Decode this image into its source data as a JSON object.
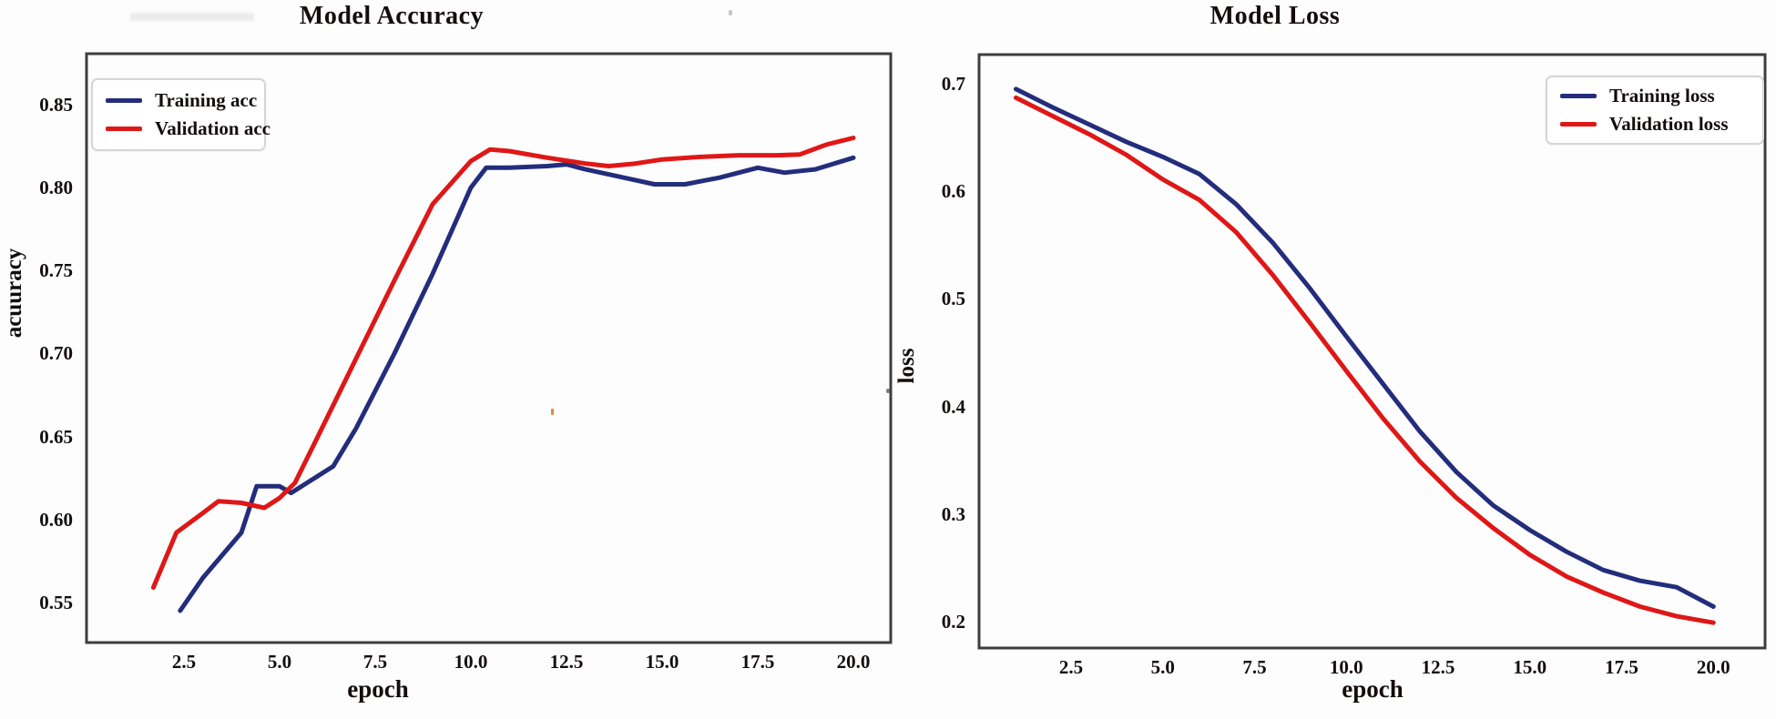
{
  "figure": {
    "background": "#fdfdfd"
  },
  "colors": {
    "training_line": "#232d7c",
    "validation_line": "#df1717",
    "spine": "#3d3d3d",
    "text": "#140d0d"
  },
  "charts": [
    {
      "id": "accuracy",
      "title": "Model Accuracy",
      "xlabel": "epoch",
      "ylabel": "acuuracy",
      "x_ticks": [
        "2.5",
        "5.0",
        "7.5",
        "10.0",
        "12.5",
        "15.0",
        "17.5",
        "20.0"
      ],
      "y_ticks": [
        "0.85",
        "0.80",
        "0.75",
        "0.70",
        "0.65",
        "0.60",
        "0.55"
      ],
      "legend_position": "top-left",
      "legend": [
        {
          "label": "Training acc",
          "color_key": "training_line"
        },
        {
          "label": "Validation acc",
          "color_key": "validation_line"
        }
      ]
    },
    {
      "id": "loss",
      "title": "Model Loss",
      "xlabel": "epoch",
      "ylabel": "loss",
      "x_ticks": [
        "2.5",
        "5.0",
        "7.5",
        "10.0",
        "12.5",
        "15.0",
        "17.5",
        "20.0"
      ],
      "y_ticks": [
        "0.7",
        "0.6",
        "0.5",
        "0.4",
        "0.3",
        "0.2"
      ],
      "legend_position": "top-right",
      "legend": [
        {
          "label": "Training loss",
          "color_key": "training_line"
        },
        {
          "label": "Validation loss",
          "color_key": "validation_line"
        }
      ]
    }
  ],
  "chart_data": [
    {
      "type": "line",
      "title": "Model Accuracy",
      "xlabel": "epoch",
      "ylabel": "acuuracy",
      "xlim": [
        0.3,
        21.0
      ],
      "ylim": [
        0.525,
        0.87
      ],
      "x_tick_values": [
        2.5,
        5.0,
        7.5,
        10.0,
        12.5,
        15.0,
        17.5,
        20.0
      ],
      "y_tick_values": [
        0.55,
        0.6,
        0.65,
        0.7,
        0.75,
        0.8,
        0.85
      ],
      "grid": false,
      "legend_position": "upper left",
      "series": [
        {
          "name": "Training acc",
          "color": "#232d7c",
          "points": [
            [
              2.4,
              0.545
            ],
            [
              3,
              0.565
            ],
            [
              4,
              0.592
            ],
            [
              4.4,
              0.62
            ],
            [
              5,
              0.62
            ],
            [
              5.3,
              0.616
            ],
            [
              6.4,
              0.632
            ],
            [
              7,
              0.655
            ],
            [
              8,
              0.7
            ],
            [
              9,
              0.748
            ],
            [
              10,
              0.8
            ],
            [
              10.4,
              0.812
            ],
            [
              11,
              0.812
            ],
            [
              12,
              0.813
            ],
            [
              12.5,
              0.814
            ],
            [
              13,
              0.811
            ],
            [
              14,
              0.806
            ],
            [
              14.8,
              0.802
            ],
            [
              15.6,
              0.802
            ],
            [
              16.5,
              0.806
            ],
            [
              17.5,
              0.812
            ],
            [
              18.2,
              0.809
            ],
            [
              19,
              0.811
            ],
            [
              20,
              0.818
            ]
          ]
        },
        {
          "name": "Validation acc",
          "color": "#df1717",
          "points": [
            [
              1.7,
              0.559
            ],
            [
              2.3,
              0.592
            ],
            [
              3,
              0.604
            ],
            [
              3.4,
              0.611
            ],
            [
              4,
              0.61
            ],
            [
              4.6,
              0.607
            ],
            [
              5,
              0.613
            ],
            [
              5.4,
              0.622
            ],
            [
              6,
              0.65
            ],
            [
              7,
              0.697
            ],
            [
              8,
              0.744
            ],
            [
              9,
              0.79
            ],
            [
              10,
              0.816
            ],
            [
              10.5,
              0.823
            ],
            [
              11,
              0.822
            ],
            [
              12,
              0.818
            ],
            [
              13,
              0.8145
            ],
            [
              13.6,
              0.813
            ],
            [
              14.3,
              0.8145
            ],
            [
              15,
              0.817
            ],
            [
              16,
              0.8185
            ],
            [
              17,
              0.8195
            ],
            [
              18,
              0.8195
            ],
            [
              18.6,
              0.82
            ],
            [
              19.3,
              0.826
            ],
            [
              20,
              0.83
            ]
          ]
        }
      ]
    },
    {
      "type": "line",
      "title": "Model Loss",
      "xlabel": "epoch",
      "ylabel": "loss",
      "xlim": [
        0.3,
        21.0
      ],
      "ylim": [
        0.175,
        0.725
      ],
      "x_tick_values": [
        2.5,
        5.0,
        7.5,
        10.0,
        12.5,
        15.0,
        17.5,
        20.0
      ],
      "y_tick_values": [
        0.2,
        0.3,
        0.4,
        0.5,
        0.6,
        0.7
      ],
      "grid": false,
      "legend_position": "upper right",
      "series": [
        {
          "name": "Training loss",
          "color": "#232d7c",
          "points": [
            [
              1,
              0.695
            ],
            [
              2,
              0.678
            ],
            [
              3,
              0.662
            ],
            [
              4,
              0.646
            ],
            [
              5,
              0.632
            ],
            [
              6,
              0.616
            ],
            [
              7,
              0.588
            ],
            [
              8,
              0.552
            ],
            [
              9,
              0.51
            ],
            [
              10,
              0.465
            ],
            [
              11,
              0.421
            ],
            [
              12,
              0.377
            ],
            [
              13,
              0.339
            ],
            [
              14,
              0.308
            ],
            [
              15,
              0.285
            ],
            [
              16,
              0.265
            ],
            [
              17,
              0.248
            ],
            [
              18,
              0.238
            ],
            [
              19,
              0.232
            ],
            [
              20,
              0.214
            ]
          ]
        },
        {
          "name": "Validation loss",
          "color": "#df1717",
          "points": [
            [
              1,
              0.687
            ],
            [
              2,
              0.67
            ],
            [
              3,
              0.653
            ],
            [
              4,
              0.634
            ],
            [
              5,
              0.611
            ],
            [
              6,
              0.592
            ],
            [
              7,
              0.562
            ],
            [
              8,
              0.522
            ],
            [
              9,
              0.478
            ],
            [
              10,
              0.433
            ],
            [
              11,
              0.389
            ],
            [
              12,
              0.349
            ],
            [
              13,
              0.315
            ],
            [
              14,
              0.287
            ],
            [
              15,
              0.262
            ],
            [
              16,
              0.242
            ],
            [
              17,
              0.227
            ],
            [
              18,
              0.214
            ],
            [
              19,
              0.205
            ],
            [
              20,
              0.199
            ]
          ]
        }
      ]
    }
  ]
}
